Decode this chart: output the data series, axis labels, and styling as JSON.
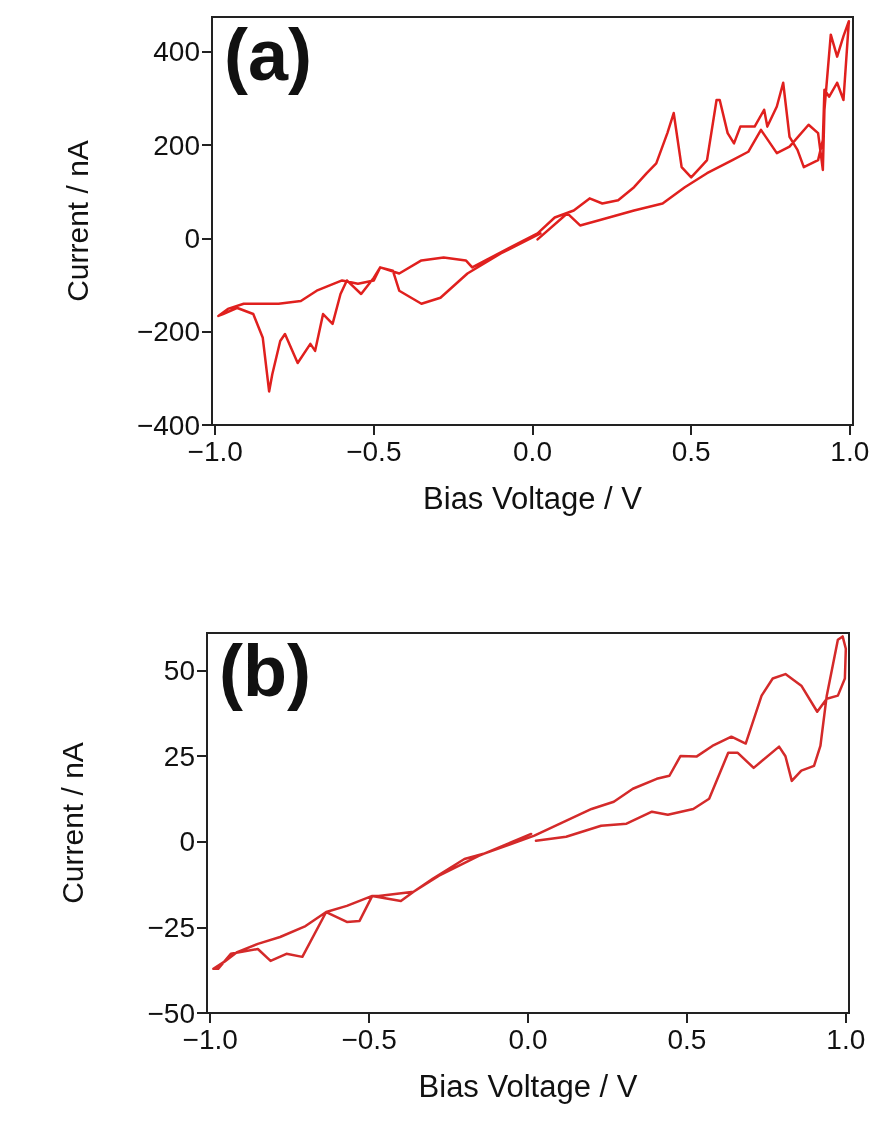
{
  "chart_data": [
    {
      "type": "line",
      "annotations": [
        "(a)"
      ],
      "xlabel": "Bias Voltage / V",
      "ylabel": "Current / nA",
      "grid": false,
      "marker": "none",
      "line_style": "solid",
      "xlim": [
        -1.01,
        1.01
      ],
      "ylim": [
        -400,
        475
      ],
      "xticks": [
        {
          "value": -1,
          "label": "−1.0"
        },
        {
          "value": -0.5,
          "label": "−0.5"
        },
        {
          "value": 0,
          "label": "0.0"
        },
        {
          "value": 0.5,
          "label": "0.5"
        },
        {
          "value": 1,
          "label": "1.0"
        }
      ],
      "yticks": [
        {
          "value": -400,
          "label": "−400"
        },
        {
          "value": -200,
          "label": "−200"
        },
        0,
        200,
        400
      ],
      "series": [
        {
          "color": "#e0201e",
          "x": [
            0.016,
            0.11,
            0.15,
            0.21,
            0.32,
            0.41,
            0.48,
            0.55,
            0.63,
            0.68,
            0.72,
            0.77,
            0.81,
            0.87,
            0.9,
            0.915,
            0.92,
            0.94,
            0.96,
            0.98,
            0.997,
            0.98,
            0.96,
            0.935,
            0.92,
            0.915,
            0.9,
            0.855,
            0.835,
            0.81,
            0.79,
            0.77,
            0.74,
            0.73,
            0.7,
            0.655,
            0.635,
            0.615,
            0.59,
            0.58,
            0.55,
            0.53,
            0.5,
            0.47,
            0.445,
            0.425,
            0.39,
            0.36,
            0.32,
            0.27,
            0.22,
            0.18,
            0.13,
            0.07,
            0.016,
            -0.07,
            -0.19,
            -0.21,
            -0.28,
            -0.35,
            -0.42,
            -0.48,
            -0.5,
            -0.55,
            -0.6,
            -0.68,
            -0.73,
            -0.8,
            -0.91,
            -0.96,
            -0.99,
            -0.975,
            -0.93,
            -0.88,
            -0.85,
            -0.83,
            -0.82,
            -0.795,
            -0.78,
            -0.74,
            -0.7,
            -0.685,
            -0.66,
            -0.63,
            -0.605,
            -0.585,
            -0.54,
            -0.5,
            -0.48,
            -0.44,
            -0.42,
            -0.35,
            -0.29,
            -0.205,
            -0.1,
            0.025
          ],
          "values": [
            -2,
            54,
            28,
            39,
            60,
            75,
            110,
            140,
            168,
            186,
            233,
            183,
            197,
            244,
            226,
            147,
            276,
            437,
            390,
            434,
            466,
            297,
            334,
            304,
            319,
            211,
            168,
            153,
            190,
            218,
            334,
            283,
            240,
            276,
            240,
            240,
            204,
            226,
            297,
            297,
            168,
            153,
            131,
            153,
            269,
            226,
            161,
            140,
            110,
            82,
            75,
            86,
            60,
            45,
            11,
            -19,
            -62,
            -47,
            -41,
            -47,
            -75,
            -62,
            -90,
            -97,
            -90,
            -112,
            -134,
            -140,
            -140,
            -151,
            -166,
            -162,
            -149,
            -162,
            -213,
            -328,
            -291,
            -220,
            -205,
            -267,
            -226,
            -241,
            -162,
            -183,
            -119,
            -90,
            -119,
            -84,
            -62,
            -69,
            -112,
            -140,
            -127,
            -75,
            -32,
            11
          ]
        }
      ]
    },
    {
      "type": "line",
      "annotations": [
        "(b)"
      ],
      "xlabel": "Bias Voltage / V",
      "ylabel": "Current / nA",
      "grid": false,
      "marker": "none",
      "line_style": "solid",
      "xlim": [
        -1.01,
        1.01
      ],
      "ylim": [
        -50,
        61
      ],
      "xticks": [
        {
          "value": -1,
          "label": "−1.0"
        },
        {
          "value": -0.5,
          "label": "−0.5"
        },
        {
          "value": 0,
          "label": "0.0"
        },
        {
          "value": 0.5,
          "label": "0.5"
        },
        {
          "value": 1,
          "label": "1.0"
        }
      ],
      "yticks": [
        {
          "value": -50,
          "label": "−50"
        },
        {
          "value": -25,
          "label": "−25"
        },
        0,
        25,
        50
      ],
      "series": [
        {
          "color": "#d42a2a",
          "x": [
            0.025,
            0.12,
            0.23,
            0.31,
            0.39,
            0.44,
            0.52,
            0.57,
            0.63,
            0.66,
            0.71,
            0.79,
            0.81,
            0.83,
            0.86,
            0.9,
            0.92,
            0.94,
            0.975,
            0.99,
            1.0,
            0.997,
            0.975,
            0.94,
            0.91,
            0.86,
            0.81,
            0.77,
            0.735,
            0.685,
            0.64,
            0.58,
            0.53,
            0.48,
            0.445,
            0.405,
            0.33,
            0.27,
            0.2,
            0.02,
            -0.14,
            -0.2,
            -0.3,
            -0.36,
            -0.47,
            -0.49,
            -0.57,
            -0.635,
            -0.7,
            -0.78,
            -0.85,
            -0.915,
            -0.955,
            -0.99,
            -0.975,
            -0.935,
            -0.85,
            -0.81,
            -0.76,
            -0.71,
            -0.635,
            -0.57,
            -0.53,
            -0.49,
            -0.4,
            -0.36,
            -0.28,
            -0.155,
            0.01
          ],
          "values": [
            0.3,
            1.5,
            4.7,
            5.3,
            8.8,
            7.9,
            9.6,
            12.6,
            26,
            26,
            21.6,
            27.8,
            25,
            17.8,
            20.8,
            22.2,
            28,
            42.7,
            59,
            60,
            56.4,
            47.7,
            42.7,
            41.8,
            38,
            45.6,
            49,
            47.7,
            42.7,
            28.7,
            30.7,
            28,
            24.9,
            25.1,
            19.3,
            18.4,
            15.5,
            11.7,
            9.6,
            1.8,
            -3.5,
            -5,
            -10.8,
            -14.6,
            -15.8,
            -15.8,
            -18.7,
            -20.5,
            -24.6,
            -27.8,
            -29.8,
            -32.2,
            -35,
            -37.1,
            -37.1,
            -32.7,
            -31.3,
            -34.8,
            -32.7,
            -33.6,
            -20.5,
            -23.4,
            -23.1,
            -15.8,
            -17.3,
            -14.6,
            -9.9,
            -4.1,
            2.3
          ]
        }
      ]
    }
  ]
}
